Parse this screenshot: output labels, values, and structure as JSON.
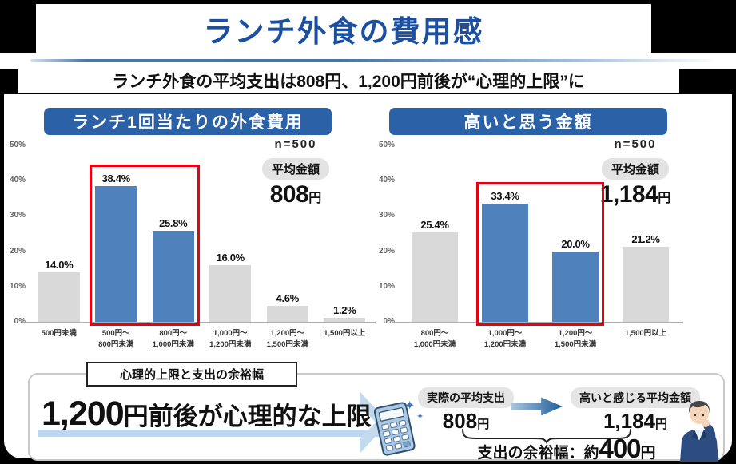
{
  "header": {
    "title": "ランチ外食の費用感",
    "subtitle": "ランチ外食の平均支出は808円、1,200円前後が“心理的上限”に"
  },
  "colors": {
    "title_blue": "#1c4fa0",
    "header_bar_blue": "#2b62a7",
    "bar_blue": "#4f81bd",
    "bar_gray": "#d9d9d9",
    "highlight_red": "#e60012",
    "underline_blue": "#bdd7ee",
    "arrow_blue": "#1e5c9b",
    "chevron_blue": "#c3d9ec"
  },
  "chart_data": [
    {
      "type": "bar",
      "title": "ランチ1回当たりの外食費用",
      "n_label": "n=500",
      "avg_badge": "平均金額",
      "avg_value": "808",
      "avg_unit": "円",
      "categories": [
        [
          "500円未満"
        ],
        [
          "500円～",
          "800円未満"
        ],
        [
          "800円～",
          "1,000円未満"
        ],
        [
          "1,000円～",
          "1,200円未満"
        ],
        [
          "1,200円～",
          "1,500円未満"
        ],
        [
          "1,500円以上"
        ]
      ],
      "values": [
        14.0,
        38.4,
        25.8,
        16.0,
        4.6,
        1.2
      ],
      "labels": [
        "14.0%",
        "38.4%",
        "25.8%",
        "16.0%",
        "4.6%",
        "1.2%"
      ],
      "highlight_indices": [
        1,
        2
      ],
      "ylim": [
        0,
        50
      ],
      "yticks": [
        "50%",
        "40%",
        "30%",
        "20%",
        "10%",
        "0%"
      ],
      "xlabel": "",
      "ylabel": "",
      "grid": false,
      "legend": false
    },
    {
      "type": "bar",
      "title": "高いと思う金額",
      "n_label": "n=500",
      "avg_badge": "平均金額",
      "avg_value": "1,184",
      "avg_unit": "円",
      "categories": [
        [
          "800円～",
          "1,000円未満"
        ],
        [
          "1,000円～",
          "1,200円未満"
        ],
        [
          "1,200円～",
          "1,500円未満"
        ],
        [
          "1,500円以上"
        ]
      ],
      "values": [
        25.4,
        33.4,
        20.0,
        21.2
      ],
      "labels": [
        "25.4%",
        "33.4%",
        "20.0%",
        "21.2%"
      ],
      "highlight_indices": [
        1,
        2
      ],
      "ylim": [
        0,
        50
      ],
      "yticks": [
        "50%",
        "40%",
        "30%",
        "20%",
        "10%",
        "0%"
      ],
      "xlabel": "",
      "ylabel": "",
      "grid": false,
      "legend": false
    }
  ],
  "summary": {
    "tag": "心理的上限と支出の余裕幅",
    "claim_number": "1,200",
    "claim_rest": "円前後が心理的な上限",
    "actual_label": "実際の平均支出",
    "actual_value": "808",
    "actual_unit": "円",
    "perceived_label": "高いと感じる平均金額",
    "perceived_value": "1,184",
    "perceived_unit": "円",
    "margin_label": "支出の余裕幅：約",
    "margin_value": "400",
    "margin_unit": "円"
  }
}
